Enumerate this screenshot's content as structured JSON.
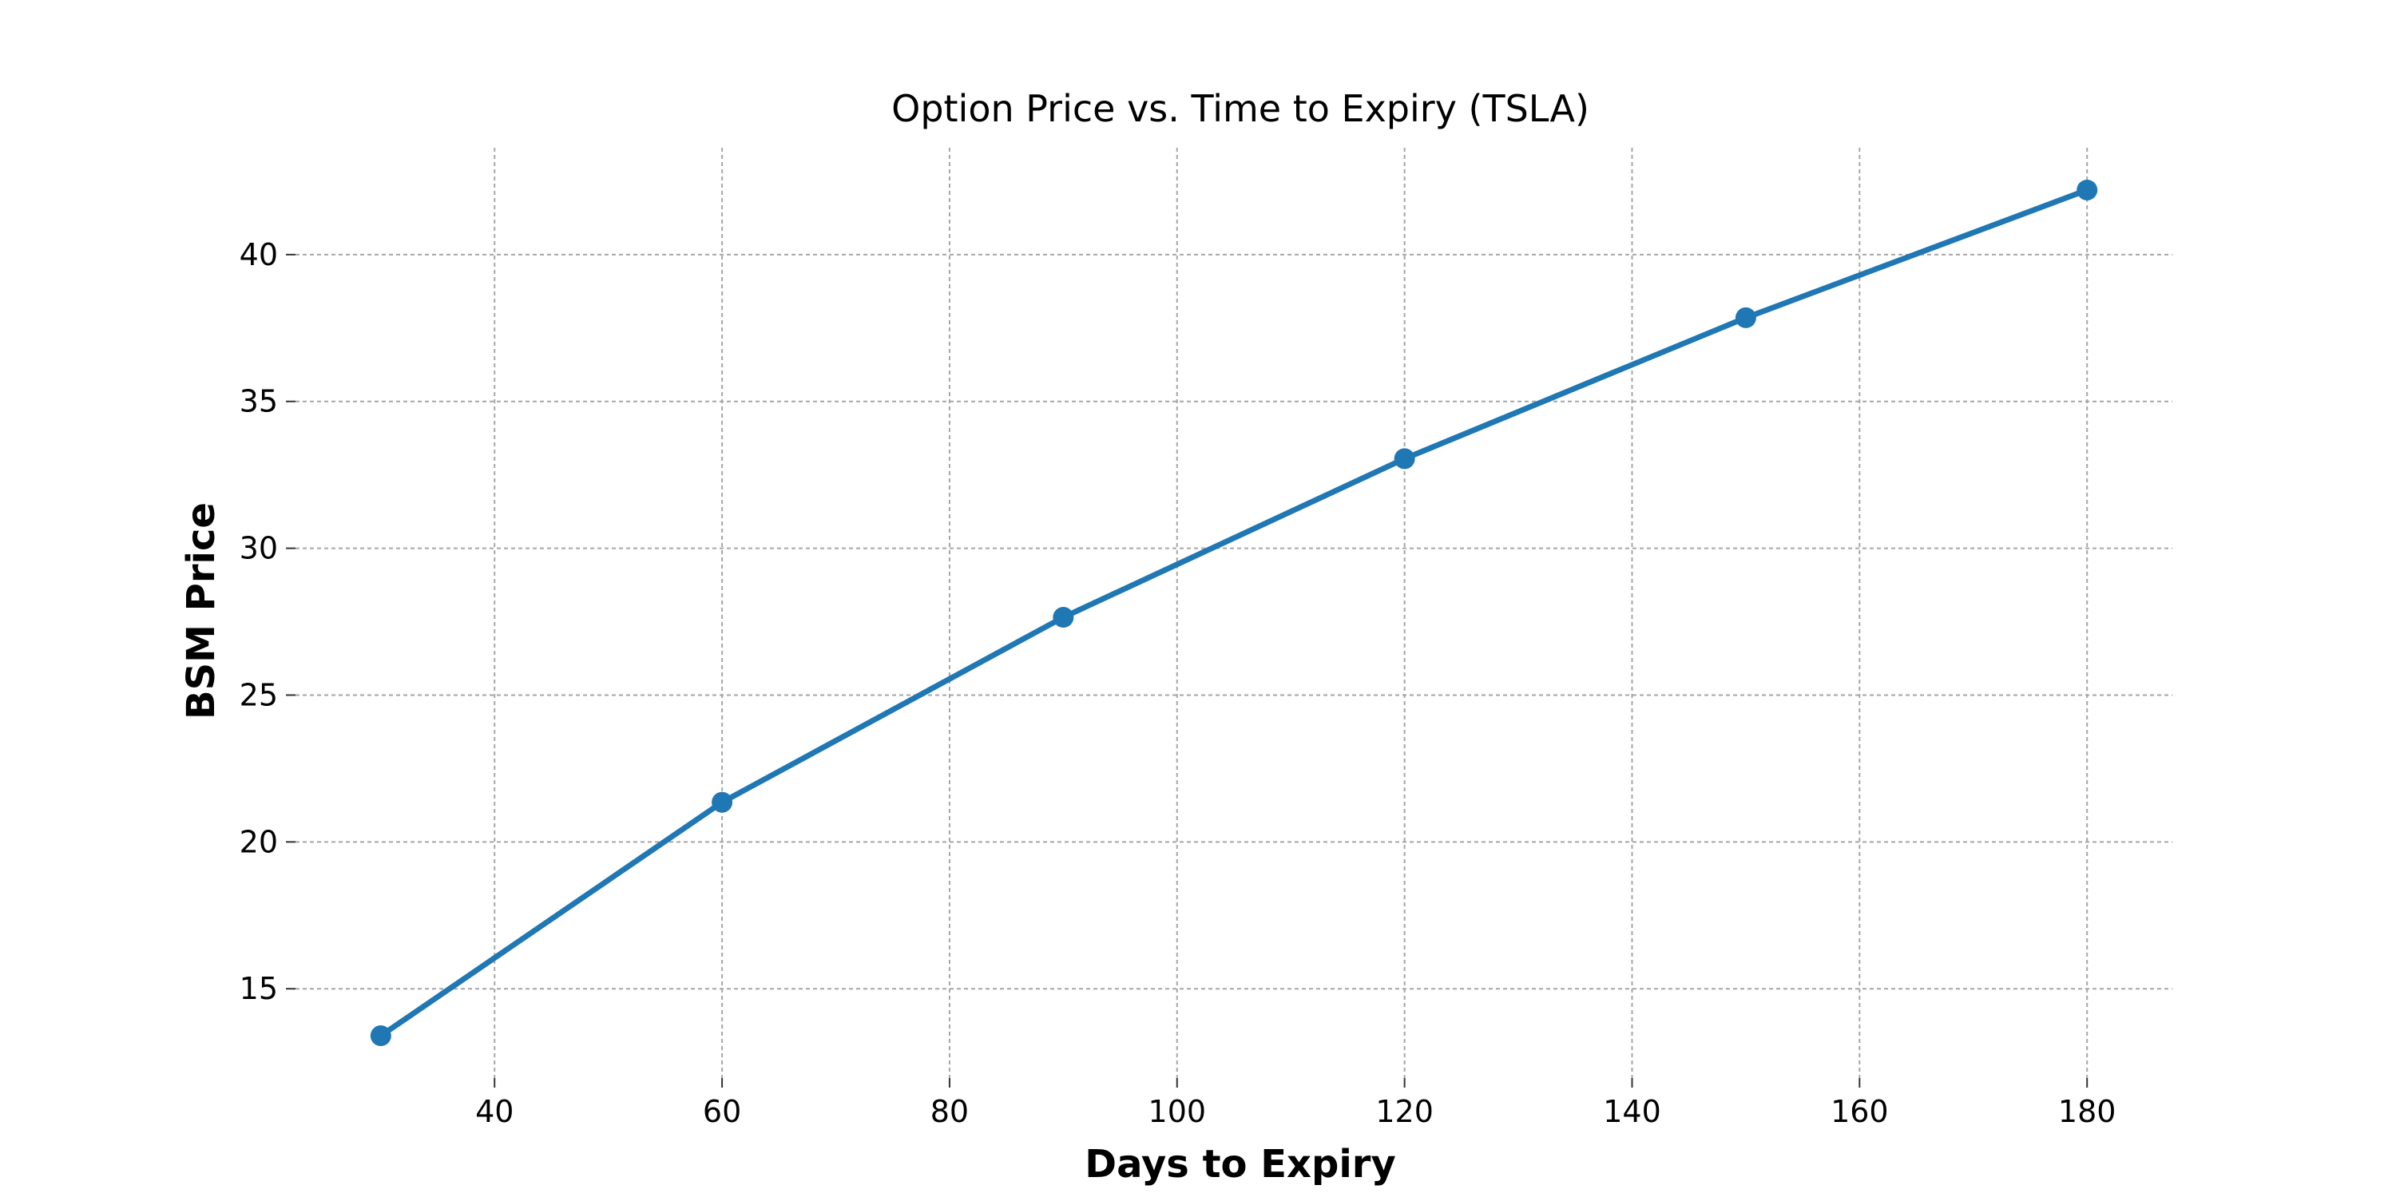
{
  "chart_data": {
    "type": "line",
    "title": "Option Price vs. Time to Expiry (TSLA)",
    "xlabel": "Days to Expiry",
    "ylabel": "BSM Price",
    "x": [
      30,
      60,
      90,
      120,
      150,
      180
    ],
    "series": [
      {
        "values": [
          13.4,
          21.35,
          27.65,
          33.05,
          37.85,
          42.2
        ],
        "color": "#1f77b4",
        "marker": "circle"
      }
    ],
    "xticks": [
      40,
      60,
      80,
      100,
      120,
      140,
      160,
      180
    ],
    "yticks": [
      15,
      20,
      25,
      30,
      35,
      40
    ],
    "xlim": [
      22.5,
      187.5
    ],
    "ylim": [
      11.96,
      43.64
    ],
    "grid": true,
    "grid_style": "dashed"
  }
}
